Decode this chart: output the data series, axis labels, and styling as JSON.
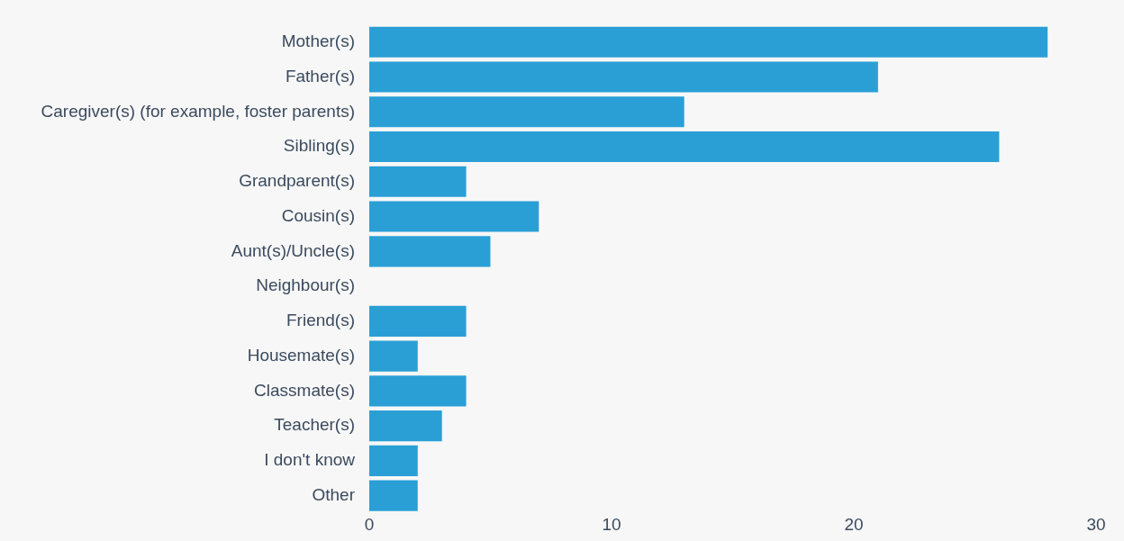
{
  "chart_data": {
    "type": "bar",
    "orientation": "horizontal",
    "categories": [
      "Mother(s)",
      "Father(s)",
      "Caregiver(s) (for example, foster parents)",
      "Sibling(s)",
      "Grandparent(s)",
      "Cousin(s)",
      "Aunt(s)/Uncle(s)",
      "Neighbour(s)",
      "Friend(s)",
      "Housemate(s)",
      "Classmate(s)",
      "Teacher(s)",
      "I don't know",
      "Other"
    ],
    "values": [
      28,
      21,
      13,
      26,
      4,
      7,
      5,
      0,
      4,
      2,
      4,
      3,
      2,
      2
    ],
    "color": "#2a9fd6",
    "xlim": [
      0,
      30
    ],
    "xticks": [
      0,
      10,
      20,
      30
    ],
    "grid": false,
    "legend": false
  }
}
